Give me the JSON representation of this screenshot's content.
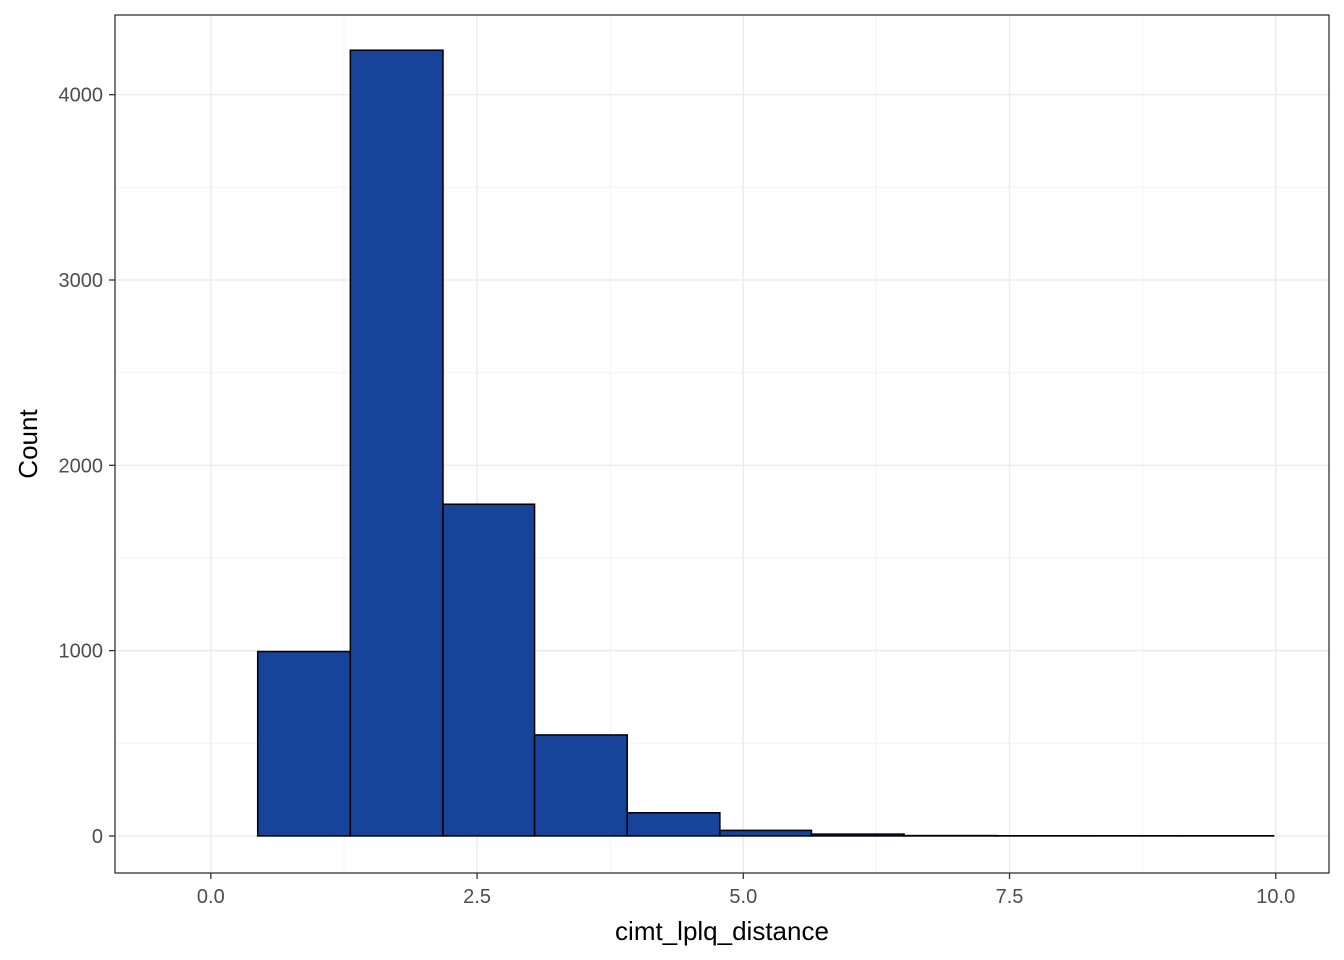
{
  "chart_data": {
    "type": "bar",
    "subtype": "histogram",
    "title": "",
    "xlabel": "cimt_lplq_distance",
    "ylabel": "Count",
    "xlim": [
      -0.9,
      10.5
    ],
    "ylim": [
      -200,
      4430
    ],
    "x_ticks": [
      0.0,
      2.5,
      5.0,
      7.5,
      10.0
    ],
    "x_tick_labels": [
      "0.0",
      "2.5",
      "5.0",
      "7.5",
      "10.0"
    ],
    "y_ticks": [
      0,
      1000,
      2000,
      3000,
      4000
    ],
    "y_tick_labels": [
      "0",
      "1000",
      "2000",
      "3000",
      "4000"
    ],
    "grid": true,
    "legend": "none",
    "bins": [
      {
        "x0": -0.42,
        "x1": 0.44,
        "count": 0
      },
      {
        "x0": 0.44,
        "x1": 1.31,
        "count": 995
      },
      {
        "x0": 1.31,
        "x1": 2.18,
        "count": 4240
      },
      {
        "x0": 2.18,
        "x1": 3.04,
        "count": 1790
      },
      {
        "x0": 3.04,
        "x1": 3.91,
        "count": 545
      },
      {
        "x0": 3.91,
        "x1": 4.78,
        "count": 125
      },
      {
        "x0": 4.78,
        "x1": 5.64,
        "count": 30
      },
      {
        "x0": 5.64,
        "x1": 6.51,
        "count": 10
      },
      {
        "x0": 6.51,
        "x1": 7.38,
        "count": 2
      },
      {
        "x0": 7.38,
        "x1": 8.24,
        "count": 1
      },
      {
        "x0": 8.24,
        "x1": 9.11,
        "count": 1
      },
      {
        "x0": 9.11,
        "x1": 9.98,
        "count": 1
      }
    ],
    "bar_fill": "#18439a",
    "bar_stroke": "#000000"
  }
}
